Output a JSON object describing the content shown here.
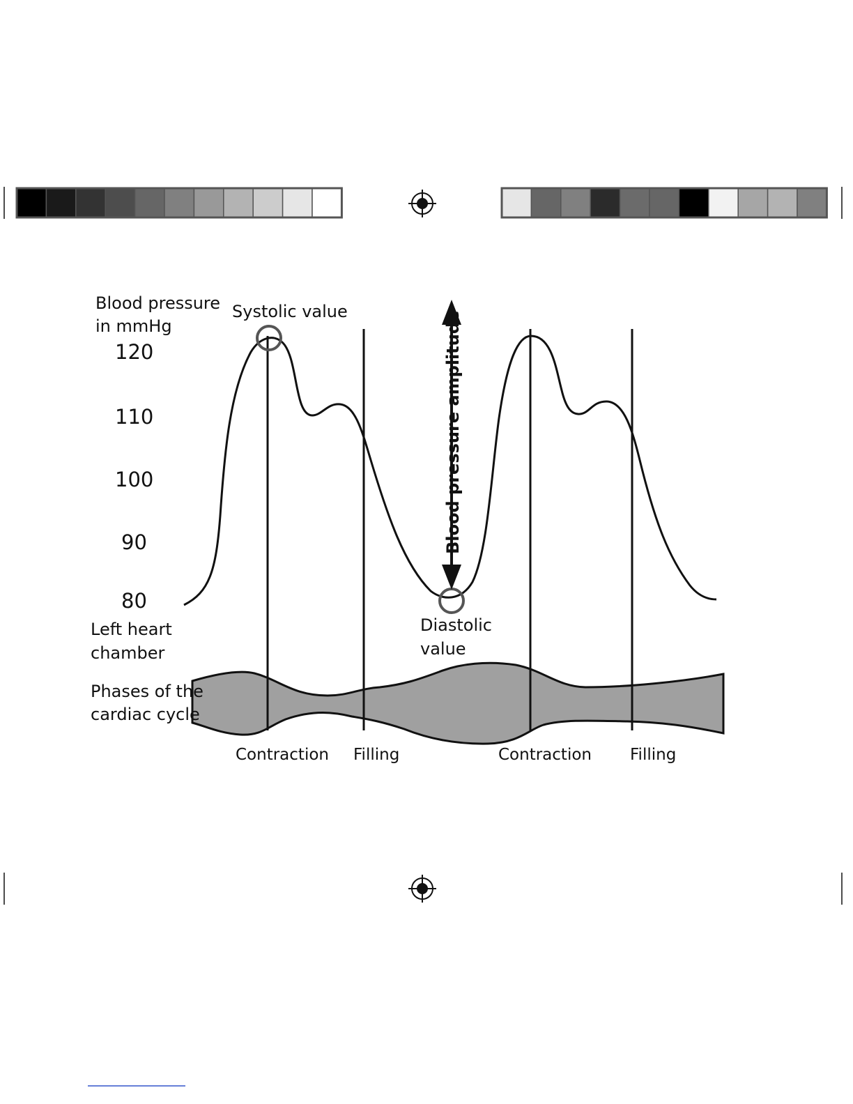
{
  "labels": {
    "y_title_line1": "Blood pressure",
    "y_title_line2": "in mmHg",
    "systolic": "Systolic value",
    "diastolic_line1": "Diastolic",
    "diastolic_line2": "value",
    "amplitude": "Blood pressure amplitude",
    "chamber_line1": "Left heart",
    "chamber_line2": "chamber",
    "phases_line1": "Phases of the",
    "phases_line2": "cardiac cycle"
  },
  "y_ticks": [
    "120",
    "110",
    "100",
    "90",
    "80"
  ],
  "phases": [
    "Contraction",
    "Filling",
    "Contraction",
    "Filling"
  ],
  "colors": {
    "line": "#111111",
    "chamber_fill": "#a0a0a0",
    "circle": "#555555"
  },
  "color_bar_left": [
    "#000000",
    "#1a1a1a",
    "#333333",
    "#4d4d4d",
    "#666666",
    "#808080",
    "#999999",
    "#b3b3b3",
    "#cccccc",
    "#e6e6e6",
    "#ffffff"
  ],
  "color_bar_right": [
    "#e6e6e6",
    "#666666",
    "#808080",
    "#2b2b2b",
    "#6b6b6b",
    "#666666",
    "#000000",
    "#f2f2f2",
    "#a6a6a6",
    "#b3b3b3",
    "#808080"
  ],
  "registration_mark_icon": "registration-crosshair-icon"
}
